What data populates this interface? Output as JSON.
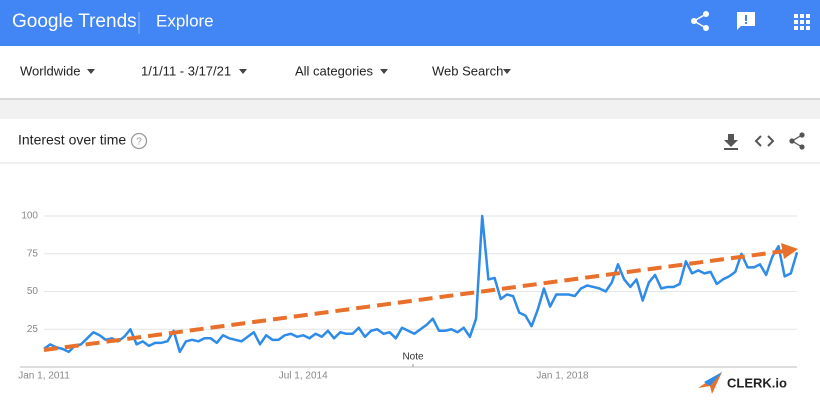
{
  "header": {
    "logo": "Google Trends",
    "title": "Explore"
  },
  "filters": [
    "Worldwide",
    "1/1/11 - 3/17/21",
    "All categories",
    "Web Search"
  ],
  "card": {
    "title": "Interest over time"
  },
  "chart_data": {
    "type": "line",
    "categories": [
      "Jan 1, 2011",
      null,
      null,
      null,
      null,
      null,
      null,
      null,
      null,
      null,
      null,
      null,
      null,
      null,
      null,
      null,
      null,
      null,
      null,
      null,
      null,
      null,
      null,
      null,
      null,
      null,
      null,
      null,
      null,
      null,
      null,
      null,
      null,
      null,
      null,
      null,
      null,
      null,
      null,
      null,
      null,
      null,
      "Jul 1, 2014",
      null,
      null,
      null,
      null,
      null,
      null,
      null,
      null,
      null,
      null,
      null,
      null,
      null,
      null,
      null,
      null,
      null,
      null,
      null,
      null,
      null,
      null,
      null,
      null,
      null,
      null,
      null,
      null,
      null,
      null,
      null,
      null,
      null,
      null,
      null,
      null,
      null,
      null,
      null,
      null,
      null,
      "Jan 1, 2018",
      null,
      null,
      null,
      null,
      null,
      null,
      null,
      null,
      null,
      null,
      null,
      null,
      null,
      null,
      null,
      null,
      null,
      null,
      null,
      null,
      null,
      null,
      null,
      null,
      null,
      null,
      null,
      null,
      null,
      null,
      null,
      null,
      null,
      null,
      null,
      null,
      null,
      null
    ],
    "values": [
      12,
      15,
      13,
      12,
      10,
      14,
      15,
      19,
      23,
      21,
      18,
      19,
      17,
      20,
      25,
      15,
      17,
      14,
      16,
      16,
      17,
      24,
      10,
      17,
      18,
      17,
      19,
      19,
      16,
      21,
      19,
      18,
      17,
      20,
      23,
      15,
      21,
      18,
      18,
      21,
      22,
      20,
      21,
      19,
      22,
      20,
      24,
      19,
      23,
      22,
      22,
      26,
      20,
      24,
      25,
      22,
      23,
      19,
      26,
      24,
      22,
      25,
      28,
      32,
      24,
      24,
      25,
      23,
      26,
      20,
      32,
      100,
      58,
      59,
      45,
      48,
      47,
      36,
      34,
      27,
      38,
      52,
      40,
      48,
      48,
      48,
      47,
      52,
      54,
      53,
      52,
      50,
      56,
      68,
      58,
      53,
      58,
      44,
      56,
      61,
      52,
      53,
      53,
      55,
      70,
      62,
      64,
      62,
      63,
      55,
      58,
      60,
      63,
      75,
      66,
      66,
      68,
      61,
      73,
      80,
      60,
      62,
      76
    ],
    "color": "#2f8be8",
    "annotations": [
      "Note"
    ],
    "ylim": [
      0,
      100
    ],
    "yticks": [
      25,
      50,
      75,
      100
    ],
    "grid": true
  },
  "watermark": "CLERK.io"
}
